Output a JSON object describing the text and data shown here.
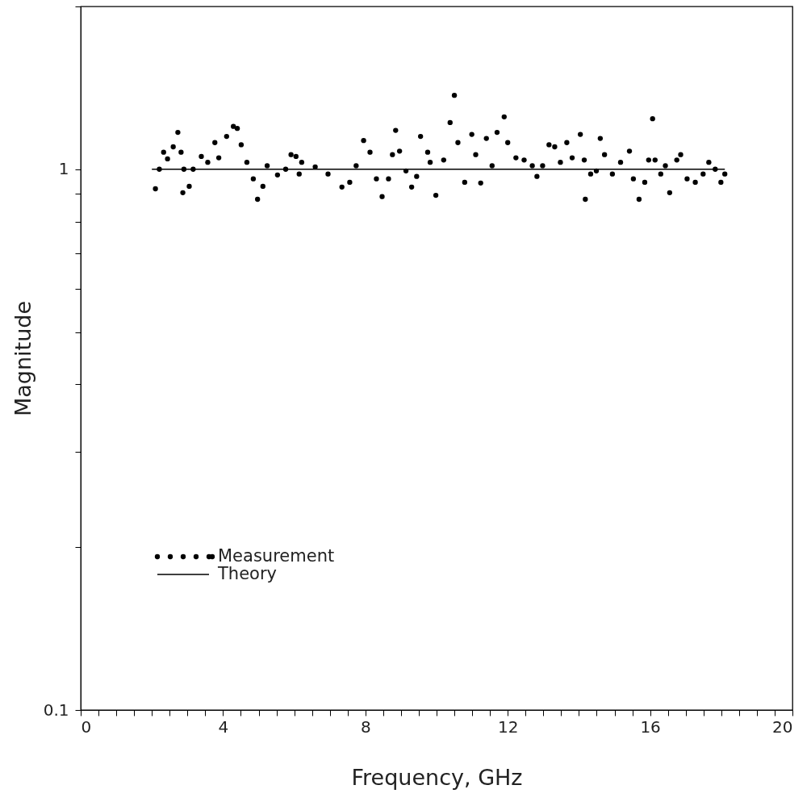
{
  "chart_data": {
    "type": "scatter",
    "xlabel": "Frequency, GHz",
    "ylabel": "Magnitude",
    "log": "y",
    "grid": false,
    "legend": "bottom left",
    "xlim": [
      0,
      20
    ],
    "ylim": [
      0.1,
      2
    ],
    "xticks": [
      0,
      {
        "value": 0.5,
        "label": null
      },
      {
        "value": 1,
        "label": null
      },
      {
        "value": 1.5,
        "label": null
      },
      {
        "value": 2,
        "label": null
      },
      {
        "value": 2.5,
        "label": null
      },
      {
        "value": 3,
        "label": null
      },
      {
        "value": 3.5,
        "label": null
      },
      4,
      {
        "value": 4.5,
        "label": null
      },
      {
        "value": 5,
        "label": null
      },
      {
        "value": 5.5,
        "label": null
      },
      {
        "value": 6,
        "label": null
      },
      {
        "value": 6.5,
        "label": null
      },
      {
        "value": 7,
        "label": null
      },
      {
        "value": 7.5,
        "label": null
      },
      8,
      {
        "value": 8.5,
        "label": null
      },
      {
        "value": 9,
        "label": null
      },
      {
        "value": 9.5,
        "label": null
      },
      {
        "value": 10,
        "label": null
      },
      {
        "value": 10.5,
        "label": null
      },
      {
        "value": 11,
        "label": null
      },
      {
        "value": 11.5,
        "label": null
      },
      12,
      {
        "value": 12.5,
        "label": null
      },
      {
        "value": 13,
        "label": null
      },
      {
        "value": 13.5,
        "label": null
      },
      {
        "value": 14,
        "label": null
      },
      {
        "value": 14.5,
        "label": null
      },
      {
        "value": 15,
        "label": null
      },
      {
        "value": 15.5,
        "label": null
      },
      16,
      {
        "value": 16.5,
        "label": null
      },
      {
        "value": 17,
        "label": null
      },
      {
        "value": 17.5,
        "label": null
      },
      {
        "value": 18,
        "label": null
      },
      {
        "value": 18.5,
        "label": null
      },
      {
        "value": 19,
        "label": null
      },
      {
        "value": 19.5,
        "label": null
      },
      20
    ],
    "yticks": [
      0.1,
      {
        "value": 0.2,
        "label": null
      },
      {
        "value": 0.3,
        "label": null
      },
      {
        "value": 0.4,
        "label": null
      },
      {
        "value": 0.5,
        "label": null
      },
      {
        "value": 0.6,
        "label": null
      },
      {
        "value": 0.7,
        "label": null
      },
      {
        "value": 0.8,
        "label": null
      },
      {
        "value": 0.9,
        "label": null
      },
      1,
      {
        "value": 2,
        "label": null
      }
    ],
    "series": [
      {
        "name": "Measurement",
        "marker": "circle",
        "color": "#000000",
        "x": [
          2.1,
          2.21,
          2.33,
          2.44,
          2.6,
          2.73,
          2.82,
          2.87,
          2.9,
          3.05,
          3.16,
          3.39,
          3.57,
          3.77,
          3.88,
          4.1,
          4.29,
          4.4,
          4.51,
          4.67,
          4.85,
          4.97,
          5.12,
          5.24,
          5.53,
          5.76,
          5.91,
          6.05,
          6.14,
          6.21,
          6.59,
          6.95,
          7.34,
          7.56,
          7.74,
          7.95,
          8.13,
          8.31,
          8.47,
          8.65,
          8.76,
          8.85,
          8.96,
          9.14,
          9.3,
          9.44,
          9.55,
          9.75,
          9.82,
          9.98,
          10.2,
          10.38,
          10.5,
          10.6,
          10.79,
          10.99,
          11.1,
          11.24,
          11.4,
          11.56,
          11.7,
          11.9,
          12.0,
          12.23,
          12.46,
          12.69,
          12.82,
          12.98,
          13.16,
          13.32,
          13.48,
          13.66,
          13.81,
          14.04,
          14.15,
          14.18,
          14.33,
          14.49,
          14.6,
          14.72,
          14.94,
          15.17,
          15.42,
          15.53,
          15.69,
          15.85,
          15.96,
          16.07,
          16.14,
          16.3,
          16.43,
          16.55,
          16.75,
          16.86,
          17.04,
          17.27,
          17.49,
          17.65,
          17.83,
          17.99,
          18.1
        ],
        "values": [
          0.92,
          1.0,
          1.075,
          1.045,
          1.1,
          1.17,
          1.075,
          0.905,
          1.0,
          0.93,
          1.0,
          1.056,
          1.03,
          1.12,
          1.05,
          1.15,
          1.2,
          1.19,
          1.11,
          1.03,
          0.96,
          0.88,
          0.93,
          1.015,
          0.976,
          1.0,
          1.064,
          1.056,
          0.98,
          1.03,
          1.01,
          0.98,
          0.927,
          0.946,
          1.015,
          1.13,
          1.075,
          0.96,
          0.89,
          0.96,
          1.064,
          1.18,
          1.08,
          0.993,
          0.927,
          0.97,
          1.15,
          1.075,
          1.03,
          0.895,
          1.04,
          1.22,
          1.37,
          1.12,
          0.946,
          1.16,
          1.064,
          0.943,
          1.14,
          1.015,
          1.17,
          1.25,
          1.12,
          1.05,
          1.04,
          1.015,
          0.97,
          1.015,
          1.11,
          1.1,
          1.03,
          1.12,
          1.05,
          1.16,
          1.04,
          0.88,
          0.98,
          0.993,
          1.14,
          1.064,
          0.98,
          1.03,
          1.08,
          0.96,
          0.88,
          0.946,
          1.04,
          1.24,
          1.04,
          0.98,
          1.015,
          0.905,
          1.04,
          1.064,
          0.96,
          0.946,
          0.98,
          1.03,
          1.0,
          0.946,
          0.98
        ]
      },
      {
        "name": "Theory",
        "type": "line",
        "line_style": "solid",
        "color": "#000000",
        "x": [
          2.0,
          18.1
        ],
        "values": [
          1,
          1
        ]
      }
    ]
  }
}
